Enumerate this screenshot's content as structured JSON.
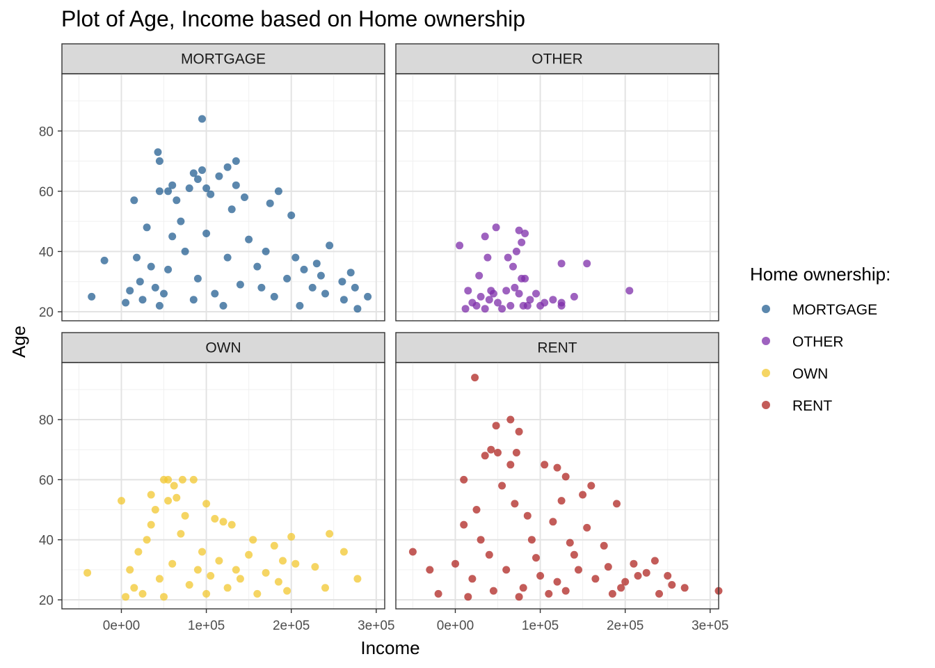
{
  "chart_data": {
    "type": "scatter",
    "title": "Plot of Age, Income based on Home ownership",
    "xlabel": "Income",
    "ylabel": "Age",
    "xlim": [
      -70000,
      310000
    ],
    "ylim": [
      17,
      99
    ],
    "x_ticks": [
      0,
      100000,
      200000,
      300000
    ],
    "x_tick_labels": [
      "0e+00",
      "1e+05",
      "2e+05",
      "3e+05"
    ],
    "y_ticks": [
      20,
      40,
      60,
      80
    ],
    "y_tick_labels": [
      "20",
      "40",
      "60",
      "80"
    ],
    "grid": true,
    "facets": [
      "MORTGAGE",
      "OTHER",
      "OWN",
      "RENT"
    ],
    "legend": {
      "title": "Home ownership:",
      "position": "right",
      "entries": [
        "MORTGAGE",
        "OTHER",
        "OWN",
        "RENT"
      ]
    },
    "colors": {
      "MORTGAGE": "#245F91",
      "OTHER": "#7D2EAA",
      "OWN": "#F1C72F",
      "RENT": "#AF2521"
    },
    "series": [
      {
        "name": "MORTGAGE",
        "facet": "MORTGAGE",
        "points": [
          [
            95000,
            84
          ],
          [
            43000,
            73
          ],
          [
            45000,
            70
          ],
          [
            135000,
            70
          ],
          [
            95000,
            67
          ],
          [
            85000,
            66
          ],
          [
            125000,
            68
          ],
          [
            115000,
            65
          ],
          [
            90000,
            64
          ],
          [
            135000,
            62
          ],
          [
            60000,
            62
          ],
          [
            80000,
            61
          ],
          [
            100000,
            61
          ],
          [
            45000,
            60
          ],
          [
            55000,
            60
          ],
          [
            185000,
            60
          ],
          [
            145000,
            58
          ],
          [
            105000,
            59
          ],
          [
            200000,
            52
          ],
          [
            175000,
            56
          ],
          [
            15000,
            57
          ],
          [
            65000,
            57
          ],
          [
            130000,
            54
          ],
          [
            -20000,
            37
          ],
          [
            -35000,
            25
          ],
          [
            245000,
            42
          ],
          [
            270000,
            33
          ],
          [
            290000,
            25
          ],
          [
            275000,
            28
          ],
          [
            262000,
            24
          ],
          [
            278000,
            21
          ],
          [
            230000,
            36
          ],
          [
            260000,
            30
          ],
          [
            5000,
            23
          ],
          [
            10000,
            27
          ],
          [
            25000,
            24
          ],
          [
            22000,
            30
          ],
          [
            40000,
            28
          ],
          [
            35000,
            35
          ],
          [
            55000,
            34
          ],
          [
            45000,
            22
          ],
          [
            60000,
            45
          ],
          [
            75000,
            40
          ],
          [
            90000,
            31
          ],
          [
            110000,
            26
          ],
          [
            125000,
            38
          ],
          [
            140000,
            29
          ],
          [
            160000,
            35
          ],
          [
            180000,
            25
          ],
          [
            195000,
            31
          ],
          [
            210000,
            22
          ],
          [
            225000,
            28
          ],
          [
            18000,
            38
          ],
          [
            30000,
            48
          ],
          [
            70000,
            50
          ],
          [
            100000,
            46
          ],
          [
            150000,
            44
          ],
          [
            170000,
            40
          ],
          [
            215000,
            34
          ],
          [
            240000,
            26
          ],
          [
            50000,
            26
          ],
          [
            85000,
            24
          ],
          [
            120000,
            22
          ],
          [
            165000,
            28
          ],
          [
            205000,
            38
          ],
          [
            235000,
            32
          ]
        ]
      },
      {
        "name": "OTHER",
        "facet": "OTHER",
        "points": [
          [
            5000,
            42
          ],
          [
            35000,
            45
          ],
          [
            48000,
            48
          ],
          [
            75000,
            47
          ],
          [
            82000,
            46
          ],
          [
            78000,
            43
          ],
          [
            72000,
            40
          ],
          [
            62000,
            38
          ],
          [
            38000,
            38
          ],
          [
            125000,
            36
          ],
          [
            155000,
            36
          ],
          [
            68000,
            35
          ],
          [
            28000,
            32
          ],
          [
            82000,
            31
          ],
          [
            78000,
            31
          ],
          [
            205000,
            27
          ],
          [
            140000,
            25
          ],
          [
            125000,
            23
          ],
          [
            125000,
            22
          ],
          [
            15000,
            27
          ],
          [
            45000,
            26
          ],
          [
            70000,
            28
          ],
          [
            95000,
            26
          ],
          [
            12000,
            21
          ],
          [
            25000,
            22
          ],
          [
            40000,
            24
          ],
          [
            55000,
            21
          ],
          [
            80000,
            22
          ],
          [
            105000,
            23
          ],
          [
            115000,
            24
          ],
          [
            30000,
            25
          ],
          [
            60000,
            27
          ],
          [
            88000,
            24
          ],
          [
            20000,
            23
          ],
          [
            50000,
            23
          ],
          [
            65000,
            22
          ],
          [
            100000,
            22
          ],
          [
            35000,
            21
          ],
          [
            42000,
            27
          ],
          [
            75000,
            26
          ],
          [
            85000,
            22
          ]
        ]
      },
      {
        "name": "OWN",
        "facet": "OWN",
        "points": [
          [
            -40000,
            29
          ],
          [
            50000,
            60
          ],
          [
            55000,
            60
          ],
          [
            72000,
            60
          ],
          [
            85000,
            60
          ],
          [
            62000,
            58
          ],
          [
            35000,
            55
          ],
          [
            55000,
            53
          ],
          [
            65000,
            54
          ],
          [
            100000,
            52
          ],
          [
            0,
            53
          ],
          [
            40000,
            50
          ],
          [
            75000,
            48
          ],
          [
            110000,
            47
          ],
          [
            120000,
            46
          ],
          [
            130000,
            45
          ],
          [
            155000,
            40
          ],
          [
            200000,
            41
          ],
          [
            245000,
            42
          ],
          [
            262000,
            36
          ],
          [
            190000,
            33
          ],
          [
            205000,
            32
          ],
          [
            228000,
            31
          ],
          [
            278000,
            27
          ],
          [
            240000,
            24
          ],
          [
            185000,
            26
          ],
          [
            195000,
            23
          ],
          [
            160000,
            22
          ],
          [
            10000,
            30
          ],
          [
            20000,
            36
          ],
          [
            30000,
            40
          ],
          [
            25000,
            22
          ],
          [
            45000,
            27
          ],
          [
            60000,
            32
          ],
          [
            80000,
            25
          ],
          [
            90000,
            30
          ],
          [
            105000,
            28
          ],
          [
            125000,
            24
          ],
          [
            140000,
            27
          ],
          [
            150000,
            35
          ],
          [
            170000,
            29
          ],
          [
            180000,
            38
          ],
          [
            15000,
            24
          ],
          [
            35000,
            45
          ],
          [
            70000,
            42
          ],
          [
            95000,
            36
          ],
          [
            115000,
            33
          ],
          [
            135000,
            30
          ],
          [
            5000,
            21
          ],
          [
            50000,
            21
          ],
          [
            100000,
            22
          ]
        ]
      },
      {
        "name": "RENT",
        "facet": "RENT",
        "points": [
          [
            23000,
            94
          ],
          [
            65000,
            80
          ],
          [
            48000,
            78
          ],
          [
            75000,
            76
          ],
          [
            42000,
            70
          ],
          [
            50000,
            69
          ],
          [
            72000,
            69
          ],
          [
            35000,
            68
          ],
          [
            65000,
            65
          ],
          [
            105000,
            65
          ],
          [
            120000,
            64
          ],
          [
            130000,
            61
          ],
          [
            160000,
            58
          ],
          [
            10000,
            60
          ],
          [
            125000,
            53
          ],
          [
            190000,
            52
          ],
          [
            150000,
            55
          ],
          [
            -50000,
            36
          ],
          [
            -20000,
            22
          ],
          [
            -30000,
            30
          ],
          [
            270000,
            24
          ],
          [
            310000,
            23
          ],
          [
            250000,
            28
          ],
          [
            255000,
            25
          ],
          [
            235000,
            33
          ],
          [
            225000,
            29
          ],
          [
            200000,
            26
          ],
          [
            175000,
            38
          ],
          [
            140000,
            35
          ],
          [
            90000,
            40
          ],
          [
            0,
            32
          ],
          [
            10000,
            45
          ],
          [
            25000,
            50
          ],
          [
            55000,
            58
          ],
          [
            85000,
            48
          ],
          [
            115000,
            46
          ],
          [
            135000,
            39
          ],
          [
            155000,
            44
          ],
          [
            180000,
            31
          ],
          [
            210000,
            32
          ],
          [
            240000,
            22
          ],
          [
            20000,
            27
          ],
          [
            40000,
            35
          ],
          [
            60000,
            30
          ],
          [
            80000,
            24
          ],
          [
            100000,
            28
          ],
          [
            120000,
            26
          ],
          [
            145000,
            30
          ],
          [
            165000,
            27
          ],
          [
            195000,
            24
          ],
          [
            215000,
            28
          ],
          [
            30000,
            40
          ],
          [
            70000,
            52
          ],
          [
            95000,
            34
          ],
          [
            110000,
            22
          ],
          [
            15000,
            21
          ],
          [
            45000,
            23
          ],
          [
            75000,
            21
          ],
          [
            130000,
            23
          ],
          [
            185000,
            22
          ]
        ]
      }
    ]
  }
}
